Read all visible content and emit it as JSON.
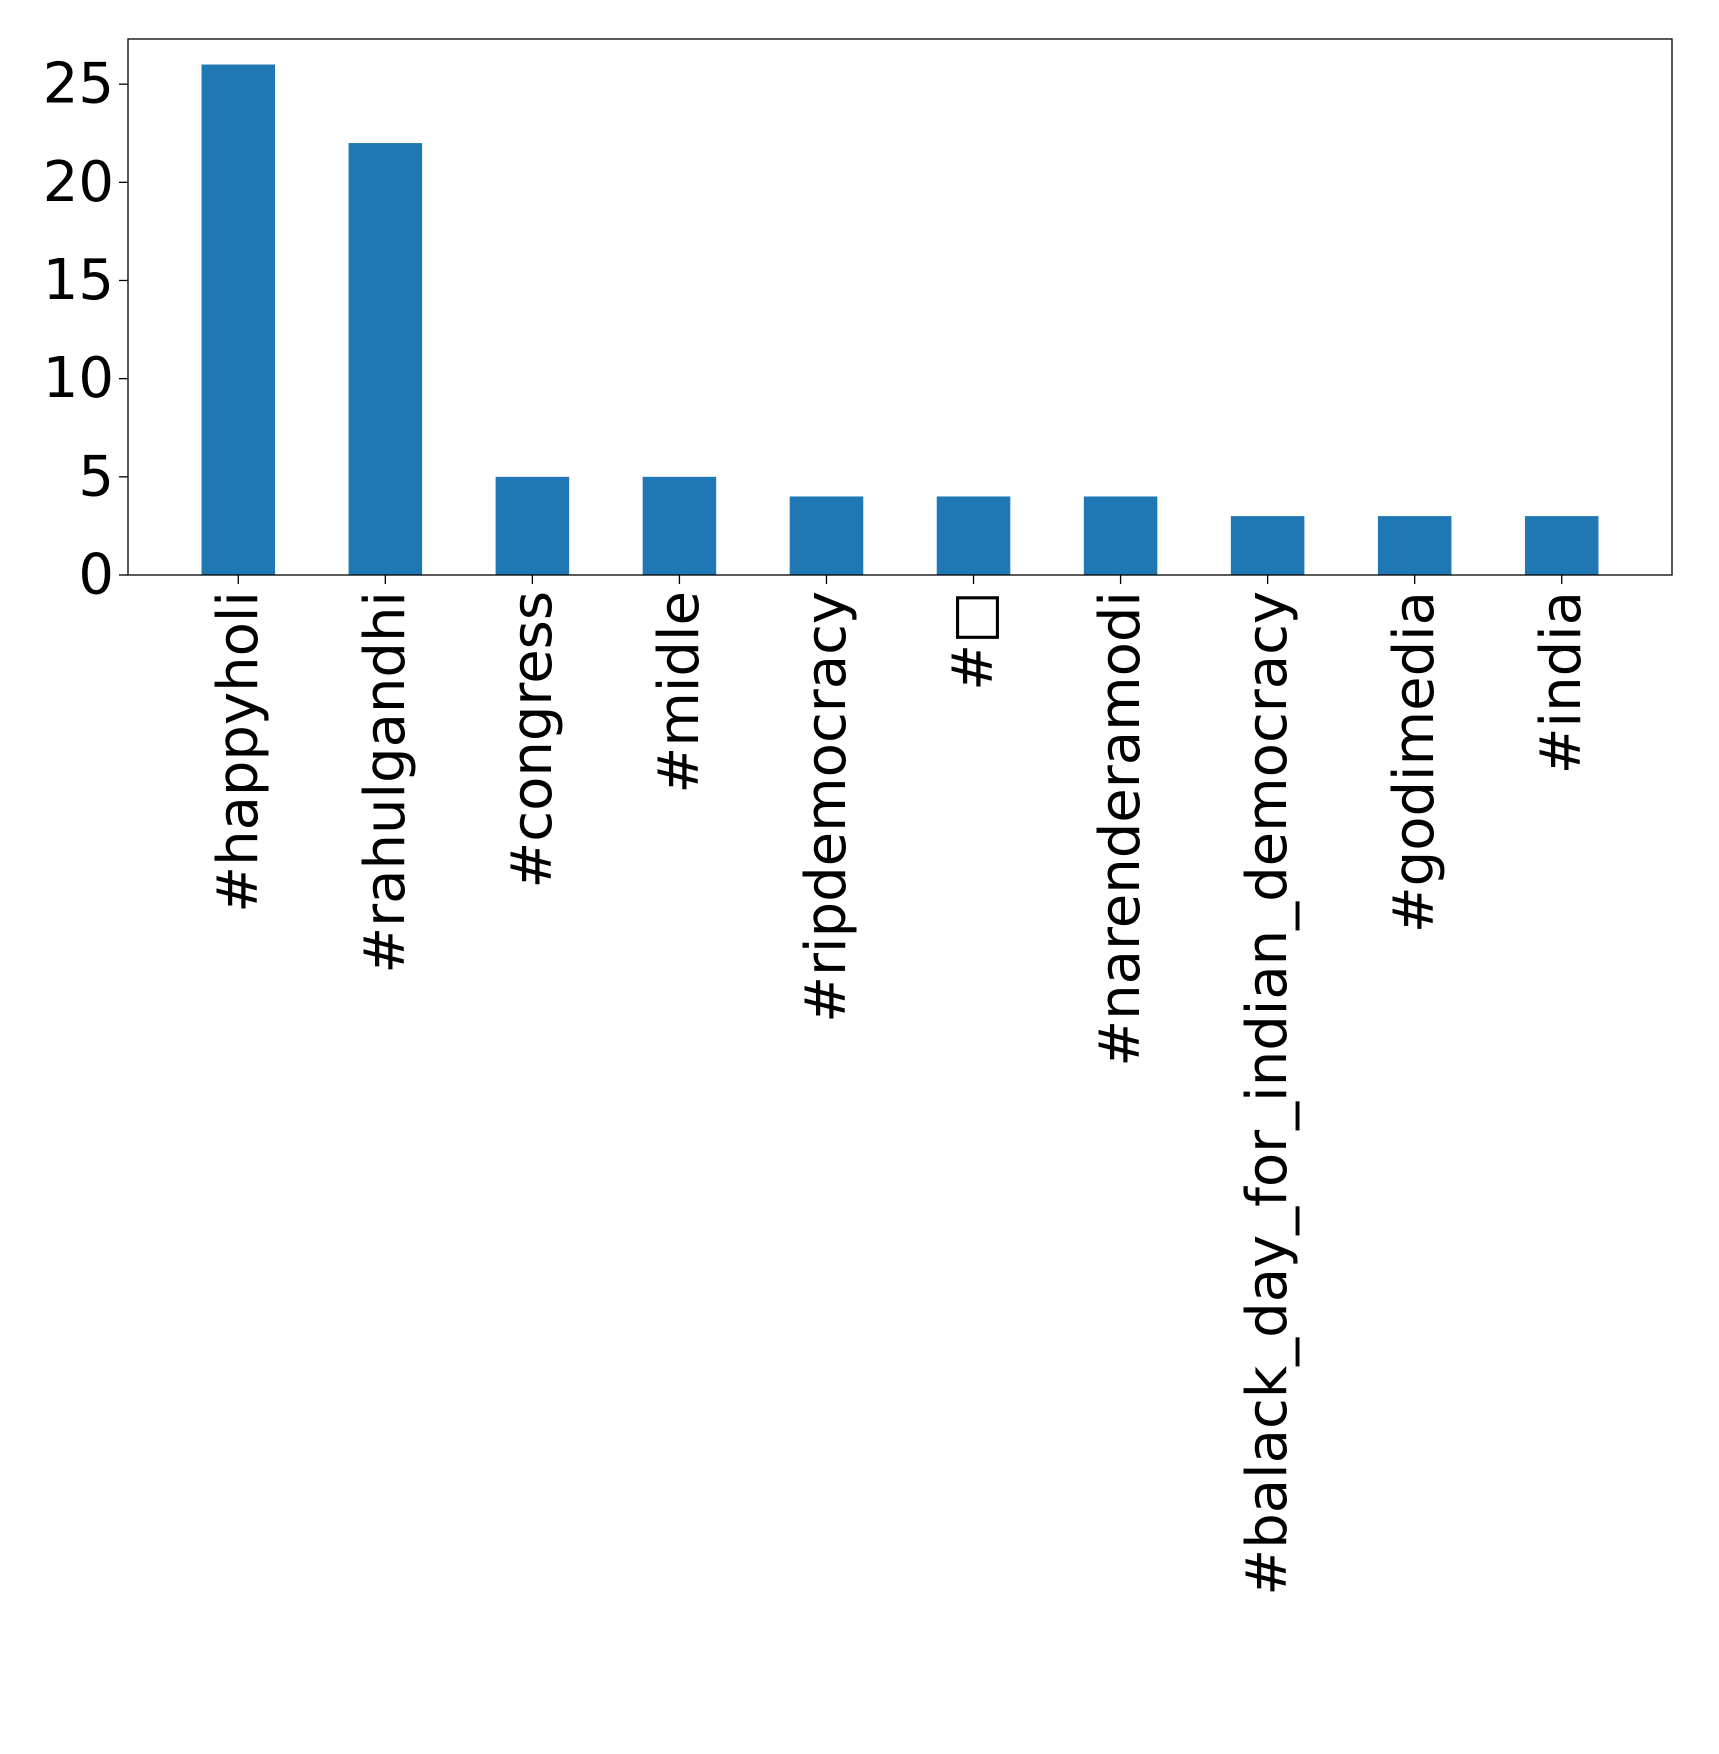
{
  "chart_data": {
    "type": "bar",
    "categories": [
      "#happyholi",
      "#rahulgandhi",
      "#congress",
      "#midle",
      "#ripdemocracy",
      "#□",
      "#narenderamodi",
      "#balack_day_for_indian_democracy",
      "#godimedia",
      "#india"
    ],
    "values": [
      26,
      22,
      5,
      5,
      4,
      4,
      4,
      3,
      3,
      3
    ],
    "ylim": [
      0,
      27.3
    ],
    "yticks": [
      0,
      5,
      10,
      15,
      20,
      25
    ],
    "bar_color": "#1f77b4",
    "grid": false,
    "legend": "none",
    "xlabel": "",
    "ylabel": "",
    "title": ""
  }
}
